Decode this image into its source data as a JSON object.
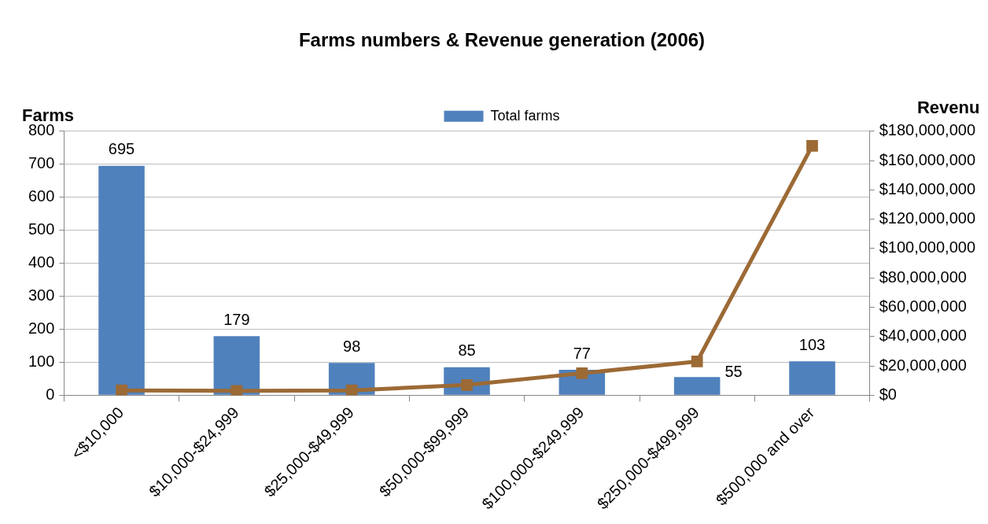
{
  "chart_data": {
    "type": "bar",
    "title": "Farms numbers & Revenue generation (2006)",
    "ylabel": "Farms",
    "y2label": "Revenu",
    "categories": [
      "<$10,000",
      "$10,000-$24,999",
      "$25,000-$49,999",
      "$50,000-$99,999",
      "$100,000-$249,999",
      "$250,000-$499,999",
      "$500,000 and over"
    ],
    "series": [
      {
        "name": "Total farms",
        "color": "#4f81bd",
        "values": [
          695,
          179,
          98,
          85,
          77,
          55,
          103
        ],
        "value_labels": [
          "695",
          "179",
          "98",
          "85",
          "77",
          "55",
          "103"
        ]
      },
      {
        "type": "line",
        "axis": "y2",
        "color": "#9c6a35",
        "marker": "square",
        "values": [
          3300000,
          3000000,
          3300000,
          7000000,
          15000000,
          23000000,
          170000000
        ]
      }
    ],
    "ylim": [
      0,
      800
    ],
    "yticks": [
      0,
      100,
      200,
      300,
      400,
      500,
      600,
      700,
      800
    ],
    "y2lim": [
      0,
      180000000
    ],
    "y2ticks": [
      {
        "value": 0,
        "label": "$0"
      },
      {
        "value": 20000000,
        "label": "$20,000,000"
      },
      {
        "value": 40000000,
        "label": "$40,000,000"
      },
      {
        "value": 60000000,
        "label": "$60,000,000"
      },
      {
        "value": 80000000,
        "label": "$80,000,000"
      },
      {
        "value": 100000000,
        "label": "$100,000,000"
      },
      {
        "value": 120000000,
        "label": "$120,000,000"
      },
      {
        "value": 140000000,
        "label": "$140,000,000"
      },
      {
        "value": 160000000,
        "label": "$160,000,000"
      },
      {
        "value": 180000000,
        "label": "$180,000,000"
      }
    ],
    "grid": "y",
    "legend": "top"
  }
}
